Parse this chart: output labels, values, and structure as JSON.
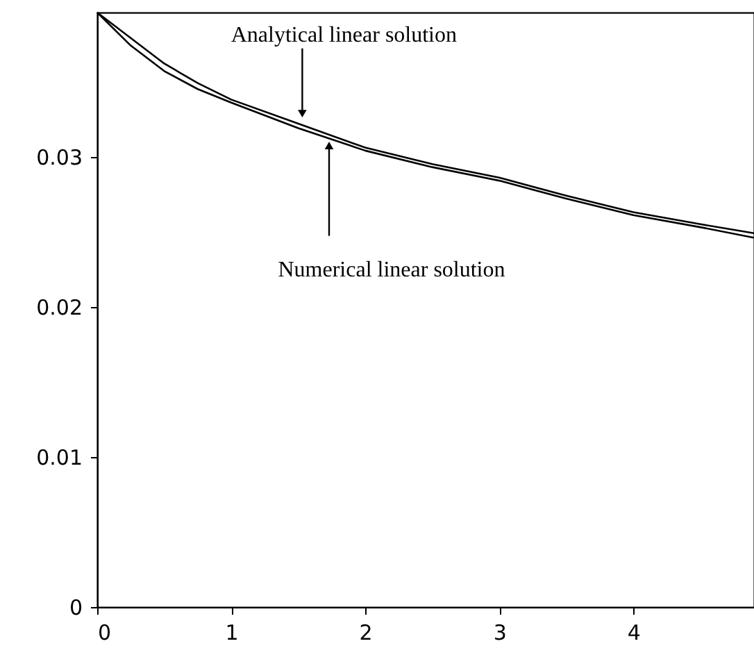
{
  "chart_data": {
    "type": "line",
    "x": [
      0,
      0.25,
      0.5,
      0.75,
      1,
      1.5,
      2,
      2.5,
      3,
      3.5,
      4,
      4.5,
      4.9
    ],
    "series": [
      {
        "color": "#000000",
        "values": [
          0.0396,
          0.0379,
          0.0362,
          0.0349,
          0.0338,
          0.0322,
          0.0306,
          0.0295,
          0.0286,
          0.0274,
          0.0263,
          0.0255,
          0.0249
        ]
      },
      {
        "color": "#000000",
        "values": [
          0.0396,
          0.0374,
          0.0357,
          0.0345,
          0.0336,
          0.0319,
          0.0304,
          0.0293,
          0.0284,
          0.0272,
          0.0261,
          0.0253,
          0.0246
        ]
      }
    ],
    "xlim": [
      0,
      4.9
    ],
    "xticks": [
      0,
      1,
      2,
      3,
      4
    ],
    "ylim": [
      0,
      0.0396
    ],
    "yticks": [
      0,
      0.01,
      0.02,
      0.03
    ],
    "grid": false,
    "marker": "none",
    "line_style": "solid",
    "annotations": [
      {
        "text": "Analytical linear solution",
        "x": 1.53,
        "y": 0.0324
      },
      {
        "text": "Numerical linear solution",
        "x": 1.73,
        "y": 0.0312
      }
    ]
  }
}
